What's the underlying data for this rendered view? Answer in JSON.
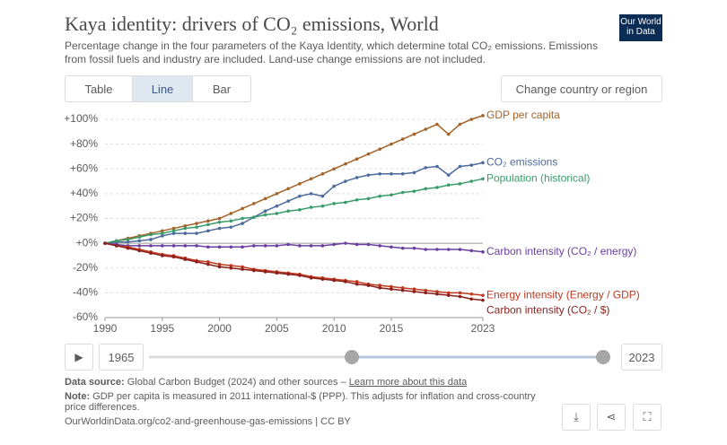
{
  "header": {
    "title": "Kaya identity: drivers of CO₂ emissions, World",
    "subtitle": "Percentage change in the four parameters of the Kaya Identity, which determine total CO₂ emissions. Emissions from fossil fuels and industry are included. Land-use change emissions are not included.",
    "logo": "Our World in Data"
  },
  "controls": {
    "tabs": [
      "Table",
      "Line",
      "Bar"
    ],
    "change": "Change country or region"
  },
  "timeline": {
    "start": "1965",
    "end": "2023"
  },
  "footer": {
    "source_label": "Data source:",
    "source": "Global Carbon Budget (2024) and other sources",
    "learn_more": "Learn more about this data",
    "note_label": "Note:",
    "note": "GDP per capita is measured in 2011 international-$ (PPP). This adjusts for inflation and cross-country price differences.",
    "url": "OurWorldinData.org/co2-and-greenhouse-gas-emissions | CC BY"
  },
  "chart_data": {
    "type": "line",
    "x": [
      1990,
      1991,
      1992,
      1993,
      1994,
      1995,
      1996,
      1997,
      1998,
      1999,
      2000,
      2001,
      2002,
      2003,
      2004,
      2005,
      2006,
      2007,
      2008,
      2009,
      2010,
      2011,
      2012,
      2013,
      2014,
      2015,
      2016,
      2017,
      2018,
      2019,
      2020,
      2021,
      2022,
      2023
    ],
    "series": [
      {
        "name": "GDP per capita",
        "color": "#a2642b",
        "values": [
          0,
          2,
          4,
          6,
          8,
          10,
          12,
          14,
          16,
          18,
          20,
          24,
          28,
          32,
          36,
          40,
          44,
          48,
          52,
          56,
          60,
          64,
          68,
          72,
          76,
          80,
          84,
          88,
          92,
          96,
          88,
          96,
          100,
          103
        ]
      },
      {
        "name": "CO₂ emissions",
        "color": "#4c6a9c",
        "values": [
          0,
          1,
          1,
          2,
          3,
          6,
          8,
          8,
          8,
          10,
          12,
          13,
          16,
          21,
          26,
          30,
          34,
          38,
          40,
          38,
          46,
          50,
          53,
          55,
          56,
          56,
          56,
          57,
          61,
          62,
          55,
          62,
          63,
          65
        ]
      },
      {
        "name": "Population (historical)",
        "color": "#3a9c6a",
        "values": [
          0,
          2,
          3,
          5,
          7,
          8,
          10,
          12,
          13,
          15,
          17,
          18,
          20,
          21,
          23,
          24,
          26,
          27,
          29,
          30,
          32,
          33,
          35,
          36,
          38,
          39,
          41,
          42,
          44,
          45,
          47,
          48,
          50,
          52
        ]
      },
      {
        "name": "Carbon intensity (CO₂ / energy)",
        "color": "#6b3fa0",
        "values": [
          0,
          -1,
          -2,
          -2,
          -2,
          -2,
          -2,
          -2,
          -2,
          -3,
          -3,
          -3,
          -3,
          -2,
          -2,
          -2,
          -1,
          -2,
          -2,
          -2,
          -1,
          0,
          -1,
          -1,
          -2,
          -3,
          -4,
          -4,
          -5,
          -5,
          -5,
          -5,
          -6,
          -7
        ]
      },
      {
        "name": "Energy intensity (Energy / GDP)",
        "color": "#c0391f",
        "values": [
          0,
          -2,
          -3,
          -5,
          -7,
          -9,
          -10,
          -12,
          -14,
          -15,
          -17,
          -18,
          -19,
          -21,
          -22,
          -23,
          -24,
          -25,
          -27,
          -28,
          -29,
          -30,
          -31,
          -33,
          -34,
          -35,
          -36,
          -37,
          -38,
          -39,
          -40,
          -40,
          -41,
          -42
        ]
      },
      {
        "name": "Carbon intensity (CO₂ / $)",
        "color": "#8a1f1a",
        "values": [
          0,
          -2,
          -4,
          -6,
          -8,
          -10,
          -11,
          -13,
          -15,
          -17,
          -19,
          -20,
          -21,
          -22,
          -23,
          -24,
          -25,
          -26,
          -28,
          -29,
          -30,
          -31,
          -33,
          -34,
          -36,
          -37,
          -38,
          -39,
          -40,
          -41,
          -42,
          -43,
          -45,
          -46
        ]
      }
    ],
    "xlim": [
      1990,
      2023
    ],
    "xticks": [
      1990,
      1995,
      2000,
      2005,
      2010,
      2015,
      2023
    ],
    "ylim": [
      -60,
      100
    ],
    "yticks": [
      {
        "value": -60,
        "label": "-60%"
      },
      {
        "value": -40,
        "label": "-40%"
      },
      {
        "value": -20,
        "label": "-20%"
      },
      {
        "value": 0,
        "label": "+0%"
      },
      {
        "value": 20,
        "label": "+20%"
      },
      {
        "value": 40,
        "label": "+40%"
      },
      {
        "value": 60,
        "label": "+60%"
      },
      {
        "value": 80,
        "label": "+80%"
      },
      {
        "value": 100,
        "label": "+100%"
      }
    ],
    "grid": true
  }
}
